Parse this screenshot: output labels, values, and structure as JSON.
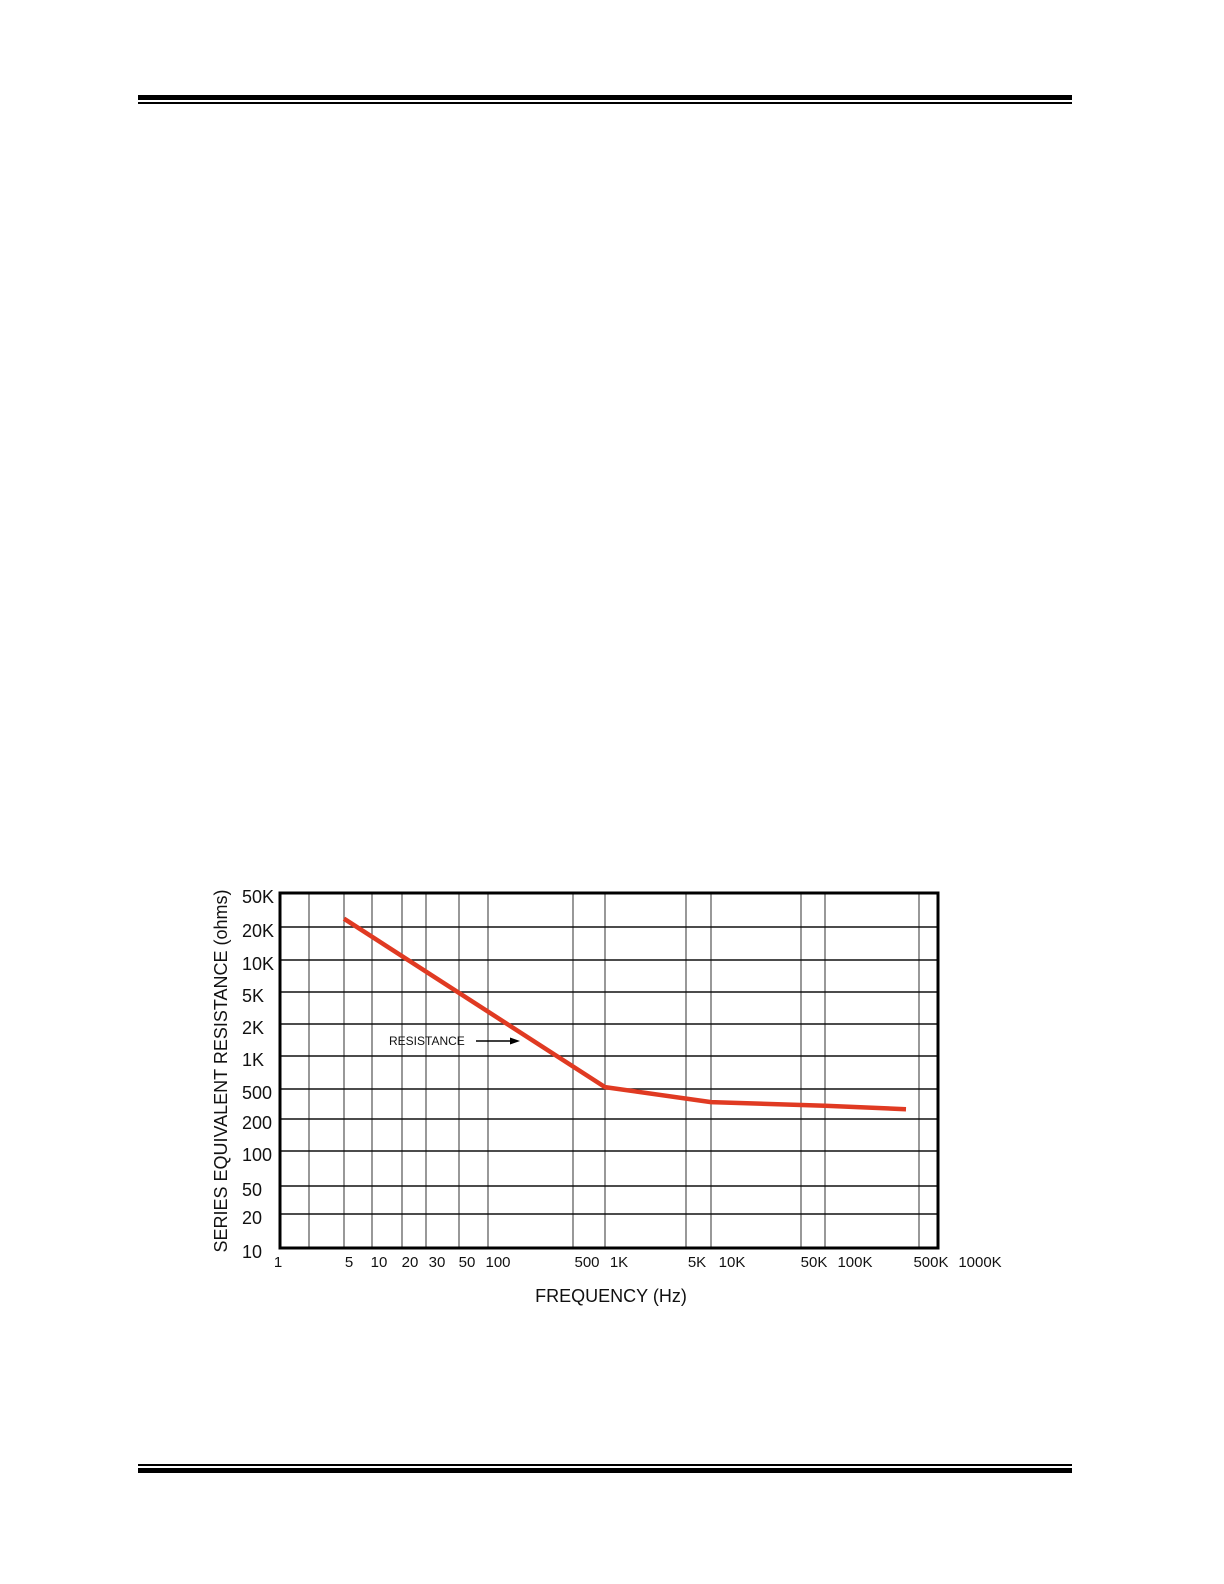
{
  "chart_data": {
    "type": "line",
    "xlabel": "FREQUENCY  (Hz)",
    "ylabel": "SERIES EQUIVALENT RESISTANCE (ohms)",
    "x_scale": "log",
    "y_scale": "log",
    "grid": true,
    "xlim": [
      1,
      1000000
    ],
    "ylim": [
      10,
      50000
    ],
    "x_tick_labels": [
      "1",
      "5",
      "10",
      "20",
      "30",
      "50",
      "100",
      "500",
      "1K",
      "5K",
      "10K",
      "50K",
      "100K",
      "500K",
      "1000K"
    ],
    "x_tick_values": [
      1,
      5,
      10,
      20,
      30,
      50,
      100,
      500,
      1000,
      5000,
      10000,
      50000,
      100000,
      500000,
      1000000
    ],
    "y_tick_labels": [
      "50K",
      "20K",
      "10K",
      "5K",
      "2K",
      "1K",
      "500",
      "200",
      "100",
      "50",
      "20",
      "10"
    ],
    "y_tick_values": [
      50000,
      20000,
      10000,
      5000,
      2000,
      1000,
      500,
      200,
      100,
      50,
      20,
      10
    ],
    "annotation": "RESISTANCE",
    "series": [
      {
        "color": "#e03a22",
        "x": [
          5,
          1000,
          10000,
          100000,
          400000
        ],
        "y": [
          25000,
          520,
          335,
          300,
          270
        ]
      }
    ]
  }
}
